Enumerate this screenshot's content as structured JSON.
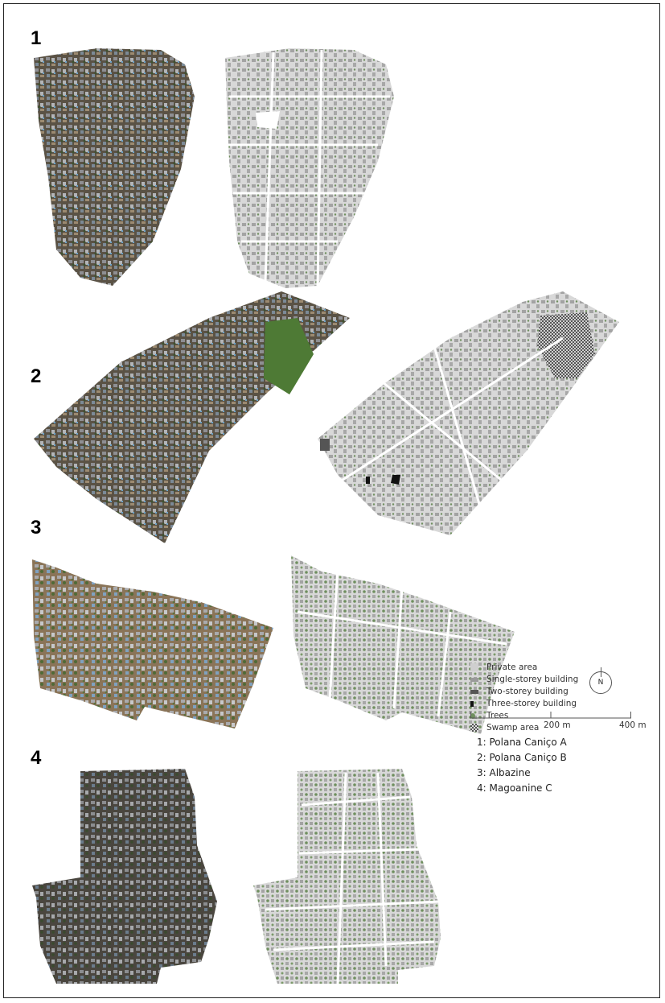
{
  "panels": [
    {
      "number": "1"
    },
    {
      "number": "2"
    },
    {
      "number": "3"
    },
    {
      "number": "4"
    }
  ],
  "legend": {
    "items": [
      {
        "label": "Private area",
        "symbol": "light-gray-square-icon",
        "color": "#cfcfcf"
      },
      {
        "label": "Single-storey building",
        "symbol": "gray-building-icon",
        "color": "#9a9a9a"
      },
      {
        "label": "Two-storey building",
        "symbol": "dark-gray-building-icon",
        "color": "#555555"
      },
      {
        "label": "Three-storey building",
        "symbol": "black-building-icon",
        "color": "#111111"
      },
      {
        "label": "Trees",
        "symbol": "tree-icon",
        "color": "#6f8f5f"
      },
      {
        "label": "Swamp area",
        "symbol": "checkered-swamp-icon",
        "color": "#888888"
      }
    ]
  },
  "north_arrow": {
    "label": "N"
  },
  "scale_bar": {
    "ticks": [
      "",
      "200 m",
      "400 m"
    ]
  },
  "key": [
    "1: Polana Caniço A",
    "2: Polana Caniço B",
    "3: Albazine",
    "4: Magoanine C"
  ],
  "colors": {
    "aerial_base": "#5b5346",
    "private_area": "#d9d9d9",
    "building": "#a0a0a0",
    "tree": "#6f8f5f",
    "swamp_vegetation": "#4e7a35"
  }
}
